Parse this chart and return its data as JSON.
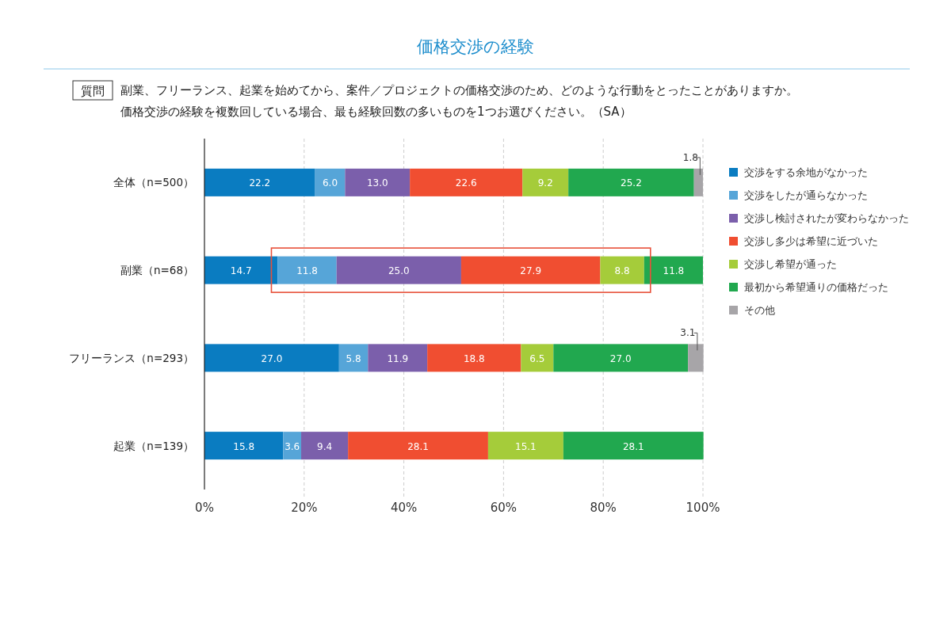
{
  "chart_data": {
    "type": "bar",
    "orientation": "horizontal",
    "stacked": true,
    "title": "価格交渉の経験",
    "subtitle": "副業、フリーランス、起業を始めてから、案件／プロジェクトの価格交渉のため、どのような行動をとったことがありますか。",
    "annotations": [
      "質問",
      "価格交渉の経験を複数回している場合、最も経験回数の多いものを1つお選びください。（SA）"
    ],
    "categories": [
      "全体（n=500）",
      "副業（n=68）",
      "フリーランス（n=293）",
      "起業（n=139）"
    ],
    "series": [
      {
        "name": "交渉をする余地がなかった",
        "color": "#0a7cc1",
        "values": [
          22.2,
          14.7,
          27.0,
          15.8
        ],
        "value_labels": [
          "22.2",
          "14.7",
          "27.0",
          "15.8"
        ]
      },
      {
        "name": "交渉をしたが通らなかった",
        "color": "#56a5d8",
        "values": [
          6.0,
          11.8,
          5.8,
          3.6
        ],
        "value_labels": [
          "6.0",
          "11.8",
          "5.8",
          "3.6"
        ]
      },
      {
        "name": "交渉し検討されたが変わらなかった",
        "color": "#7b5fab",
        "values": [
          13.0,
          25.0,
          11.9,
          9.4
        ],
        "value_labels": [
          "13.0",
          "25.0",
          "11.9",
          "9.4"
        ]
      },
      {
        "name": "交渉し多少は希望に近づいた",
        "color": "#f04e31",
        "values": [
          22.6,
          27.9,
          18.8,
          28.1
        ],
        "value_labels": [
          "22.6",
          "27.9",
          "18.8",
          "28.1"
        ]
      },
      {
        "name": "交渉し希望が通った",
        "color": "#a5cc3a",
        "values": [
          9.2,
          8.8,
          6.5,
          15.1
        ],
        "value_labels": [
          "9.2",
          "8.8",
          "6.5",
          "15.1"
        ]
      },
      {
        "name": "最初から希望通りの価格だった",
        "color": "#21a84f",
        "values": [
          25.2,
          11.8,
          27.0,
          28.1
        ],
        "value_labels": [
          "25.2",
          "11.8",
          "27.0",
          "28.1"
        ]
      },
      {
        "name": "その他",
        "color": "#a7a5a8",
        "values": [
          1.8,
          null,
          3.1,
          null
        ],
        "value_labels": [
          "1.8",
          null,
          "3.1",
          null
        ]
      }
    ],
    "xlim": [
      0,
      100
    ],
    "xticks": [
      {
        "value": 0,
        "label": "0%"
      },
      {
        "value": 20,
        "label": "20%"
      },
      {
        "value": 40,
        "label": "40%"
      },
      {
        "value": 60,
        "label": "60%"
      },
      {
        "value": 80,
        "label": "80%"
      },
      {
        "value": 100,
        "label": "100%"
      }
    ],
    "grid": "x",
    "legend": "right"
  }
}
